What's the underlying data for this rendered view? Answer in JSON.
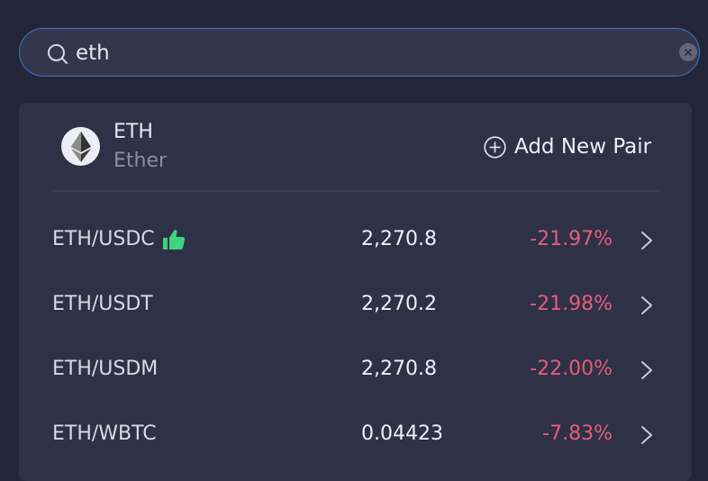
{
  "search": {
    "value": "eth"
  },
  "coin": {
    "symbol": "ETH",
    "name": "Ether",
    "add_pair_label": "Add New Pair"
  },
  "pairs": [
    {
      "pair": "ETH/USDC",
      "price": "2,270.8",
      "change": "-21.97%",
      "recommended": true
    },
    {
      "pair": "ETH/USDT",
      "price": "2,270.2",
      "change": "-21.98%",
      "recommended": false
    },
    {
      "pair": "ETH/USDM",
      "price": "2,270.8",
      "change": "-22.00%",
      "recommended": false
    },
    {
      "pair": "ETH/WBTC",
      "price": "0.04423",
      "change": "-7.83%",
      "recommended": false
    }
  ],
  "colors": {
    "negative": "#e35d7a",
    "thumb": "#3fd47e",
    "accent_border": "#3f78c7"
  }
}
